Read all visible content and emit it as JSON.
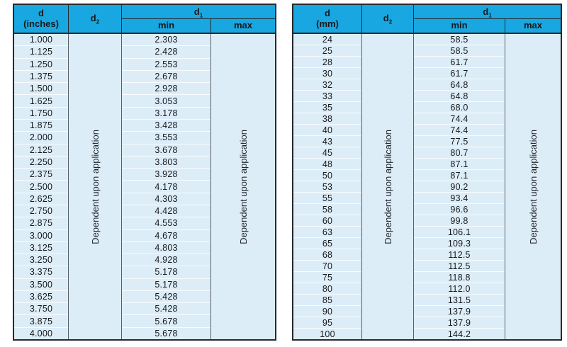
{
  "colors": {
    "header_bg": "#18a7e0",
    "cell_bg": "#dcedf8",
    "border_dark": "#26292d",
    "row_sep": "#f8fcff"
  },
  "tables": [
    {
      "unit": "inches",
      "header": {
        "d_title": "d",
        "d_unit": "(inches)",
        "d2_base": "d",
        "d2_sub": "2",
        "d1_base": "d",
        "d1_sub": "1",
        "min": "min",
        "max": "max"
      },
      "d2_note": "Dependent upon application",
      "max_note": "Dependent upon application",
      "rows": [
        {
          "d": "1.000",
          "min": "2.303"
        },
        {
          "d": "1.125",
          "min": "2.428"
        },
        {
          "d": "1.250",
          "min": "2.553"
        },
        {
          "d": "1.375",
          "min": "2.678"
        },
        {
          "d": "1.500",
          "min": "2.928"
        },
        {
          "d": "1.625",
          "min": "3.053"
        },
        {
          "d": "1.750",
          "min": "3.178"
        },
        {
          "d": "1.875",
          "min": "3.428"
        },
        {
          "d": "2.000",
          "min": "3.553"
        },
        {
          "d": "2.125",
          "min": "3.678"
        },
        {
          "d": "2.250",
          "min": "3.803"
        },
        {
          "d": "2.375",
          "min": "3.928"
        },
        {
          "d": "2.500",
          "min": "4.178"
        },
        {
          "d": "2.625",
          "min": "4.303"
        },
        {
          "d": "2.750",
          "min": "4.428"
        },
        {
          "d": "2.875",
          "min": "4.553"
        },
        {
          "d": "3.000",
          "min": "4.678"
        },
        {
          "d": "3.125",
          "min": "4.803"
        },
        {
          "d": "3.250",
          "min": "4.928"
        },
        {
          "d": "3.375",
          "min": "5.178"
        },
        {
          "d": "3.500",
          "min": "5.178"
        },
        {
          "d": "3.625",
          "min": "5.428"
        },
        {
          "d": "3.750",
          "min": "5.428"
        },
        {
          "d": "3.875",
          "min": "5.678"
        },
        {
          "d": "4.000",
          "min": "5.678"
        }
      ]
    },
    {
      "unit": "mm",
      "header": {
        "d_title": "d",
        "d_unit": "(mm)",
        "d2_base": "d",
        "d2_sub": "2",
        "d1_base": "d",
        "d1_sub": "1",
        "min": "min",
        "max": "max"
      },
      "d2_note": "Dependent upon application",
      "max_note": "Dependent upon application",
      "rows": [
        {
          "d": "24",
          "min": "58.5"
        },
        {
          "d": "25",
          "min": "58.5"
        },
        {
          "d": "28",
          "min": "61.7"
        },
        {
          "d": "30",
          "min": "61.7"
        },
        {
          "d": "32",
          "min": "64.8"
        },
        {
          "d": "33",
          "min": "64.8"
        },
        {
          "d": "35",
          "min": "68.0"
        },
        {
          "d": "38",
          "min": "74.4"
        },
        {
          "d": "40",
          "min": "74.4"
        },
        {
          "d": "43",
          "min": "77.5"
        },
        {
          "d": "45",
          "min": "80.7"
        },
        {
          "d": "48",
          "min": "87.1"
        },
        {
          "d": "50",
          "min": "87.1"
        },
        {
          "d": "53",
          "min": "90.2"
        },
        {
          "d": "55",
          "min": "93.4"
        },
        {
          "d": "58",
          "min": "96.6"
        },
        {
          "d": "60",
          "min": "99.8"
        },
        {
          "d": "63",
          "min": "106.1"
        },
        {
          "d": "65",
          "min": "109.3"
        },
        {
          "d": "68",
          "min": "112.5"
        },
        {
          "d": "70",
          "min": "112.5"
        },
        {
          "d": "75",
          "min": "118.8"
        },
        {
          "d": "80",
          "min": "112.0"
        },
        {
          "d": "85",
          "min": "131.5"
        },
        {
          "d": "90",
          "min": "137.9"
        },
        {
          "d": "95",
          "min": "137.9"
        },
        {
          "d": "100",
          "min": "144.2"
        }
      ]
    }
  ]
}
